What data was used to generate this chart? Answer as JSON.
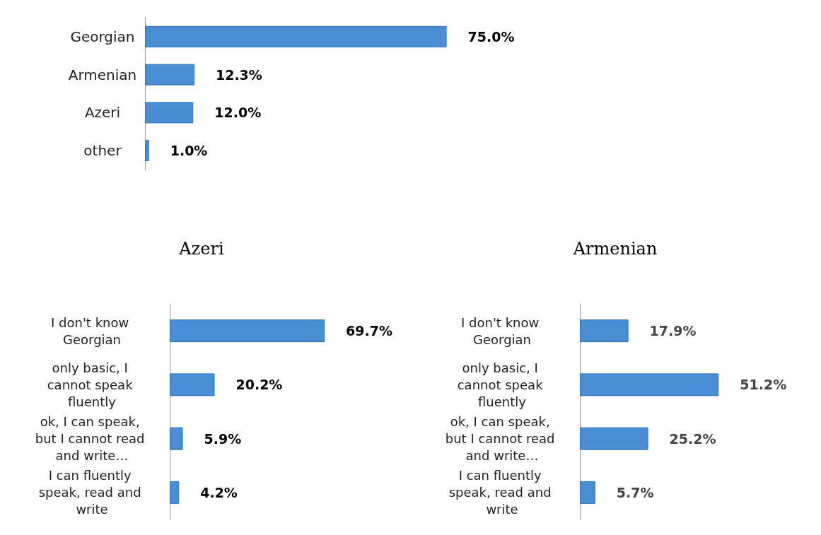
{
  "chart_data": [
    {
      "type": "bar",
      "orientation": "horizontal",
      "categories": [
        "Georgian",
        "Armenian",
        "Azeri",
        "other"
      ],
      "values": [
        75.0,
        12.3,
        12.0,
        1.0
      ],
      "value_labels": [
        "75.0%",
        "12.3%",
        "12.0%",
        "1.0%"
      ],
      "color": "#4a8fd6",
      "grid": false
    },
    {
      "type": "bar",
      "orientation": "horizontal",
      "title": "Azeri",
      "categories": [
        "I don't know Georgian",
        "only basic, I cannot speak fluently",
        "ok, I can speak, but I cannot read and write…",
        "I can fluently speak, read and write"
      ],
      "values": [
        69.7,
        20.2,
        5.9,
        4.2
      ],
      "value_labels": [
        "69.7%",
        "20.2%",
        "5.9%",
        "4.2%"
      ],
      "color": "#4a8fd6",
      "grid": false
    },
    {
      "type": "bar",
      "orientation": "horizontal",
      "title": "Armenian",
      "categories": [
        "I don't know Georgian",
        "only basic, I cannot speak fluently",
        "ok, I can speak, but I cannot read and write…",
        "I can fluently speak, read and write"
      ],
      "values": [
        17.9,
        51.2,
        25.2,
        5.7
      ],
      "value_labels": [
        "17.9%",
        "51.2%",
        "25.2%",
        "5.7%"
      ],
      "color": "#4a8fd6",
      "grid": false
    }
  ]
}
